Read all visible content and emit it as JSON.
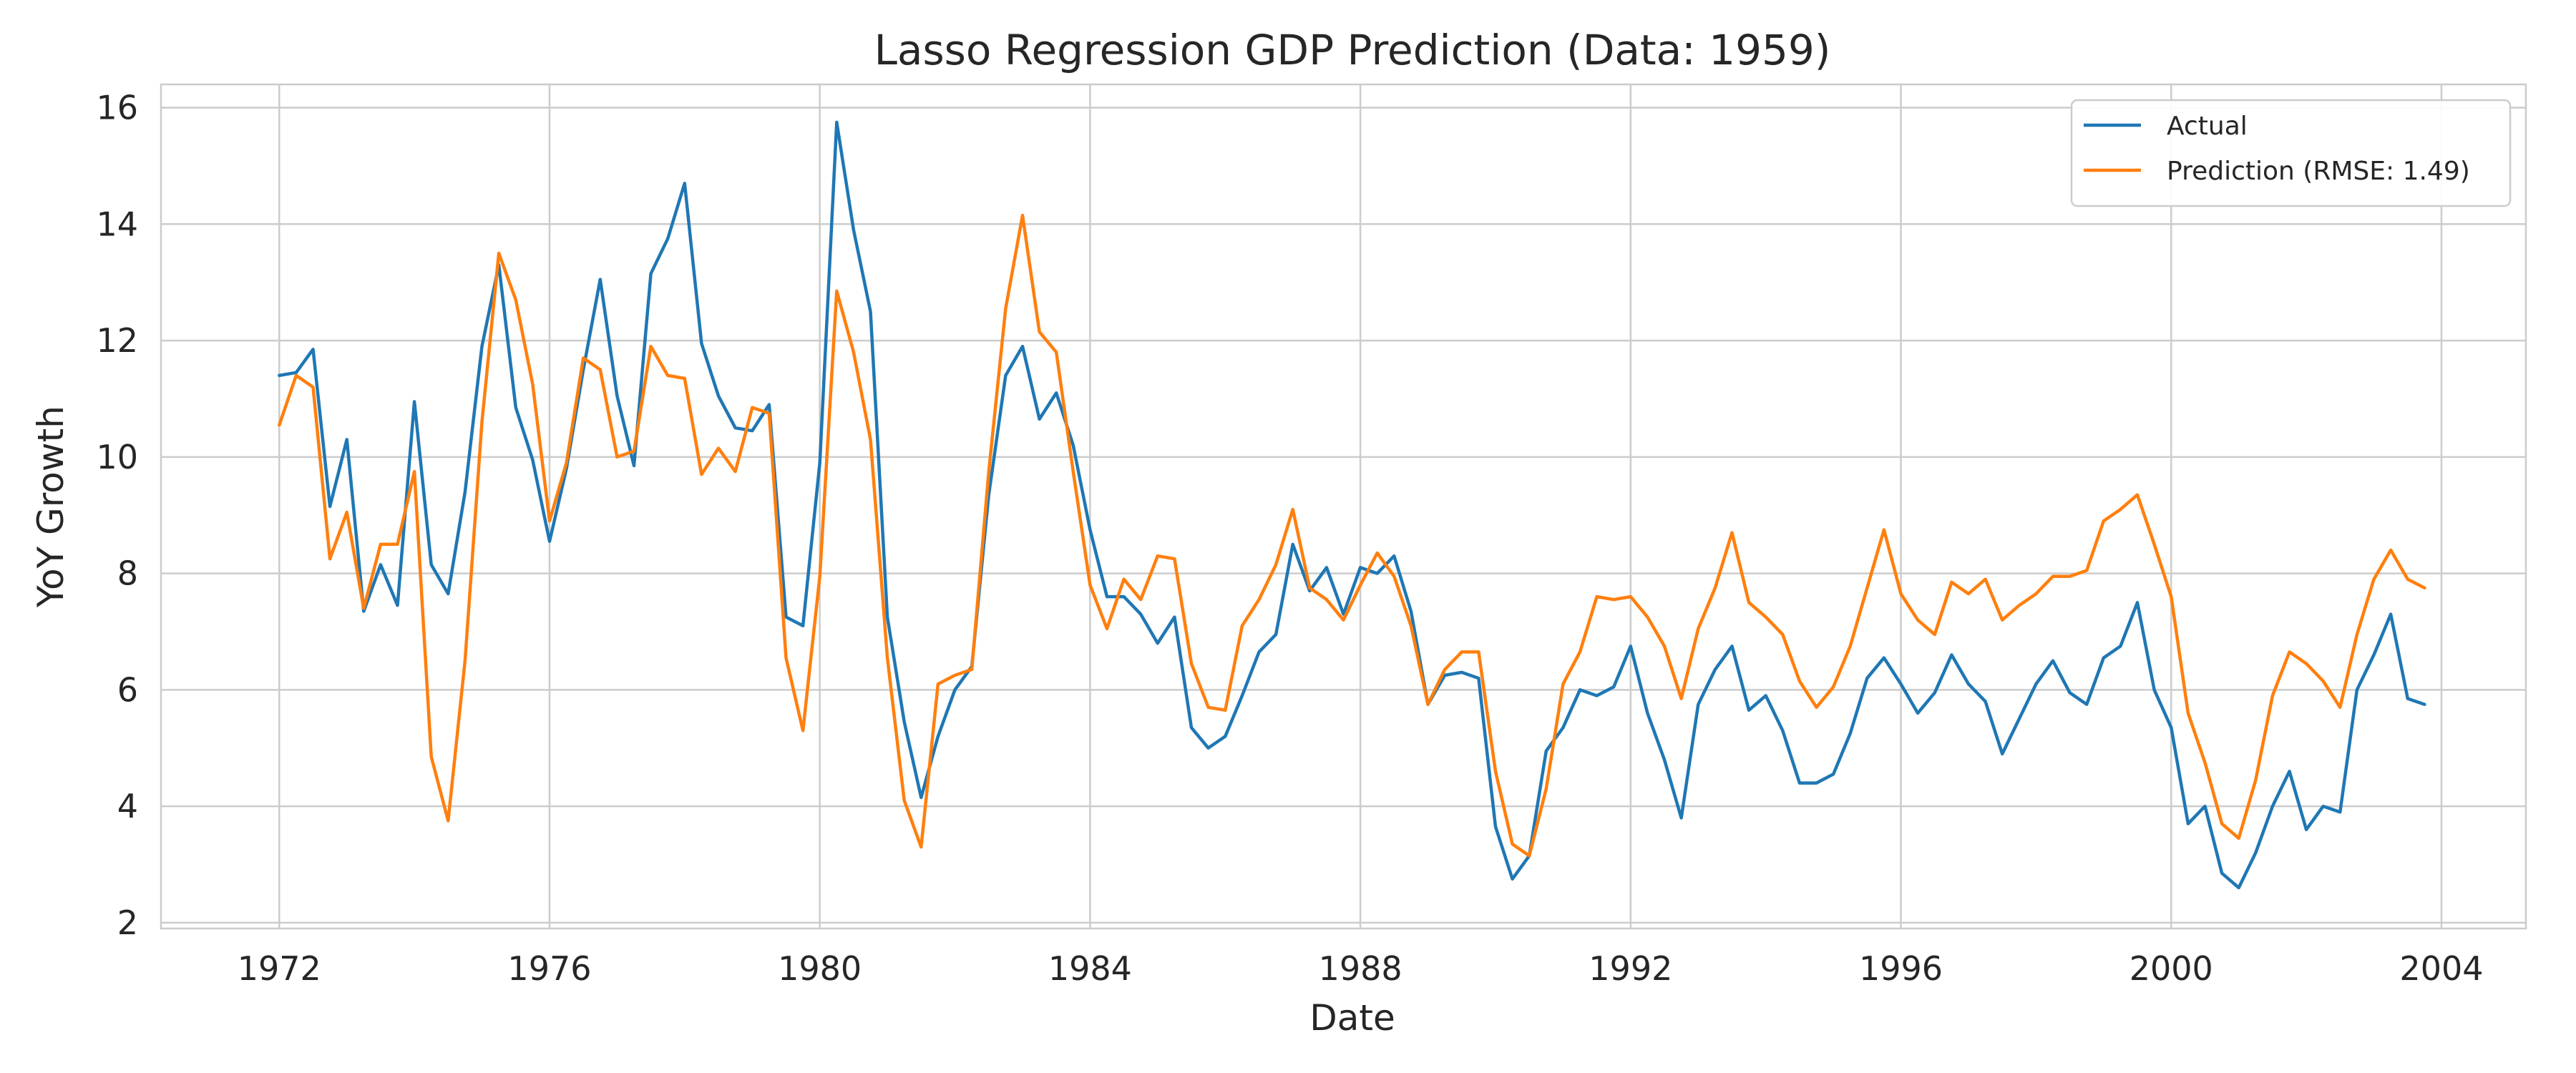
{
  "chart_data": {
    "type": "line",
    "title": "Lasso Regression GDP Prediction (Data: 1959)",
    "xlabel": "Date",
    "ylabel": "YoY Growth",
    "xlim": [
      1970.25,
      2005.25
    ],
    "ylim": [
      1.9,
      16.4
    ],
    "xticks": [
      1972,
      1976,
      1980,
      1984,
      1988,
      1992,
      1996,
      2000,
      2004
    ],
    "xtick_labels": [
      "1972",
      "1976",
      "1980",
      "1984",
      "1988",
      "1992",
      "1996",
      "2000",
      "2004"
    ],
    "yticks": [
      2,
      4,
      6,
      8,
      10,
      12,
      14,
      16
    ],
    "ytick_labels": [
      "2",
      "4",
      "6",
      "8",
      "10",
      "12",
      "14",
      "16"
    ],
    "grid": true,
    "legend": "top-right",
    "x_start": "1972 Q1",
    "x_frequency": "quarterly",
    "series": [
      {
        "name": "Actual",
        "color": "#1f77b4",
        "values": [
          11.4,
          11.45,
          11.85,
          9.15,
          10.3,
          7.35,
          8.15,
          7.45,
          10.95,
          8.15,
          7.65,
          9.4,
          11.9,
          13.3,
          10.85,
          9.95,
          8.55,
          9.8,
          11.5,
          13.05,
          11.05,
          9.85,
          13.15,
          13.75,
          14.7,
          11.95,
          11.05,
          10.5,
          10.45,
          10.9,
          7.25,
          7.1,
          9.9,
          15.75,
          13.9,
          12.5,
          7.25,
          5.45,
          4.15,
          5.2,
          6.0,
          6.4,
          9.35,
          11.4,
          11.9,
          10.65,
          11.1,
          10.2,
          8.75,
          7.6,
          7.6,
          7.3,
          6.8,
          7.25,
          5.35,
          5.0,
          5.2,
          5.9,
          6.65,
          6.95,
          8.5,
          7.7,
          8.1,
          7.3,
          8.1,
          8.0,
          8.3,
          7.35,
          5.75,
          6.25,
          6.3,
          6.2,
          3.65,
          2.75,
          3.15,
          4.95,
          5.35,
          6.0,
          5.9,
          6.05,
          6.75,
          5.6,
          4.8,
          3.8,
          5.75,
          6.35,
          6.75,
          5.65,
          5.9,
          5.3,
          4.4,
          4.4,
          4.55,
          5.25,
          6.2,
          6.55,
          6.1,
          5.6,
          5.95,
          6.6,
          6.1,
          5.8,
          4.9,
          5.5,
          6.1,
          6.5,
          5.95,
          5.75,
          6.55,
          6.75,
          7.5,
          6.0,
          5.35,
          3.7,
          4.0,
          2.85,
          2.6,
          3.2,
          4.0,
          4.6,
          3.6,
          4.0,
          3.9,
          6.0,
          6.6,
          7.3,
          5.85,
          5.75
        ]
      },
      {
        "name": "Prediction (RMSE: 1.49)",
        "color": "#ff7f0e",
        "values": [
          10.55,
          11.4,
          11.2,
          8.25,
          9.05,
          7.4,
          8.5,
          8.5,
          9.75,
          4.85,
          3.75,
          6.5,
          10.6,
          13.5,
          12.7,
          11.25,
          8.9,
          9.9,
          11.7,
          11.5,
          10.0,
          10.1,
          11.9,
          11.4,
          11.35,
          9.7,
          10.15,
          9.75,
          10.85,
          10.75,
          6.55,
          5.3,
          7.95,
          12.85,
          11.8,
          10.3,
          6.55,
          4.1,
          3.3,
          6.1,
          6.25,
          6.35,
          9.75,
          12.55,
          14.15,
          12.15,
          11.8,
          9.75,
          7.8,
          7.05,
          7.9,
          7.55,
          8.3,
          8.25,
          6.45,
          5.7,
          5.65,
          7.1,
          7.55,
          8.15,
          9.1,
          7.75,
          7.55,
          7.2,
          7.8,
          8.35,
          7.95,
          7.1,
          5.75,
          6.35,
          6.65,
          6.65,
          4.6,
          3.35,
          3.15,
          4.3,
          6.1,
          6.65,
          7.6,
          7.55,
          7.6,
          7.25,
          6.75,
          5.85,
          7.05,
          7.75,
          8.7,
          7.5,
          7.25,
          6.95,
          6.15,
          5.7,
          6.05,
          6.75,
          7.75,
          8.75,
          7.65,
          7.2,
          6.95,
          7.85,
          7.65,
          7.9,
          7.2,
          7.45,
          7.65,
          7.95,
          7.95,
          8.05,
          8.9,
          9.1,
          9.35,
          8.5,
          7.6,
          5.6,
          4.75,
          3.7,
          3.45,
          4.45,
          5.9,
          6.65,
          6.45,
          6.15,
          5.7,
          6.95,
          7.9,
          8.4,
          7.9,
          7.75
        ]
      }
    ]
  }
}
